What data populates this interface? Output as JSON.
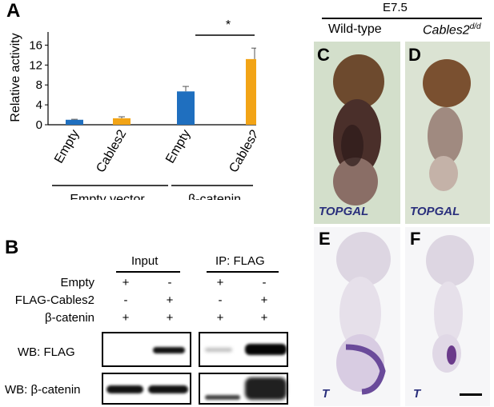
{
  "panel_a": {
    "letter": "A",
    "ylabel": "Relative activity",
    "significance": "*",
    "group_labels": [
      "Empty vector",
      "β-catenin"
    ],
    "chart_data": {
      "type": "bar",
      "categories": [
        "Empty",
        "Cables2",
        "Empty",
        "Cables2"
      ],
      "values": [
        1.0,
        1.3,
        6.7,
        13.2
      ],
      "errors": [
        0.1,
        0.3,
        1.0,
        2.2
      ],
      "bar_colors": [
        "#1f6fbf",
        "#f2a416",
        "#1f6fbf",
        "#f2a416"
      ],
      "yticks": [
        0,
        4,
        8,
        12,
        16
      ],
      "ylim": [
        0,
        18
      ],
      "ylabel": "Relative activity"
    }
  },
  "panel_b": {
    "letter": "B",
    "header_input": "Input",
    "header_ip": "IP: FLAG",
    "rows": [
      {
        "label": "Empty",
        "signs": [
          "+",
          "-",
          "+",
          "-"
        ]
      },
      {
        "label": "FLAG-Cables2",
        "signs": [
          "-",
          "+",
          "-",
          "+"
        ]
      },
      {
        "label": "β-catenin",
        "signs": [
          "+",
          "+",
          "+",
          "+"
        ]
      }
    ],
    "blot_labels": [
      "WB: FLAG",
      "WB: β-catenin"
    ]
  },
  "panel_embryo": {
    "stage": "E7.5",
    "col_wt": "Wild-type",
    "col_mut": "Cables2",
    "col_mut_sup": "d/d",
    "letters": [
      "C",
      "D",
      "E",
      "F"
    ],
    "stain_top": "TOPGAL",
    "stain_bottom": "T",
    "colors": {
      "stain_label": "#2a2f7c",
      "topgal_bg": "#d8e2cf",
      "t_bg": "#f4f4f6"
    }
  }
}
